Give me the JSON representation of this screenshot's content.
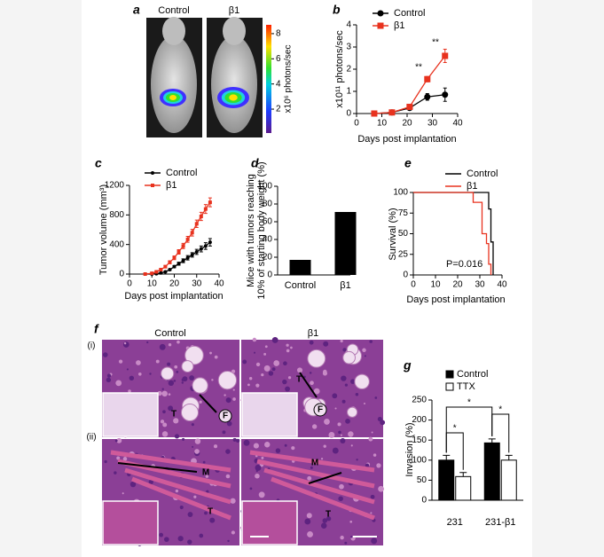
{
  "panel_a": {
    "label": "a",
    "columns": [
      "Control",
      "β1"
    ],
    "colorbar": {
      "label": "x10⁶ photons/sec",
      "lim": [
        0.1,
        8.7
      ],
      "ticks": [
        2,
        4,
        6,
        8
      ]
    }
  },
  "panel_f": {
    "label": "f",
    "columns": [
      "Control",
      "β1"
    ],
    "rows": [
      "(i)",
      "(ii)"
    ],
    "markers": [
      "T",
      "F",
      "T",
      "F",
      "M",
      "T",
      "M",
      "T"
    ]
  },
  "chart_data": [
    {
      "type": "line",
      "label": "b",
      "xlabel": "Days post implantation",
      "ylabel": "x10¹¹ photons/sec",
      "x": [
        7,
        14,
        21,
        28,
        35
      ],
      "xlim": [
        0,
        40
      ],
      "xticks": [
        0,
        10,
        20,
        30,
        40
      ],
      "ylim": [
        0,
        4
      ],
      "yticks": [
        0,
        1,
        2,
        3,
        4
      ],
      "series": [
        {
          "name": "Control",
          "color": "#000000",
          "marker": "circle",
          "values": [
            0,
            0.05,
            0.25,
            0.75,
            0.85
          ],
          "errors": [
            0.03,
            0.03,
            0.08,
            0.15,
            0.3
          ]
        },
        {
          "name": "β1",
          "color": "#e8321e",
          "marker": "square",
          "values": [
            0,
            0.05,
            0.3,
            1.55,
            2.6
          ],
          "errors": [
            0.03,
            0.03,
            0.08,
            0.12,
            0.3
          ]
        }
      ],
      "annotations": [
        "**",
        "**"
      ]
    },
    {
      "type": "line",
      "label": "c",
      "xlabel": "Days post implantation",
      "ylabel": "Tumor volume (mm³)",
      "x": [
        7,
        10,
        12,
        14,
        16,
        18,
        20,
        22,
        24,
        26,
        28,
        30,
        32,
        34,
        36
      ],
      "xlim": [
        0,
        40
      ],
      "xticks": [
        0,
        10,
        20,
        30,
        40
      ],
      "ylim": [
        0,
        1200
      ],
      "yticks": [
        0,
        400,
        800,
        1200
      ],
      "series": [
        {
          "name": "Control",
          "color": "#000000",
          "marker": "circle",
          "values": [
            0,
            0,
            5,
            15,
            30,
            60,
            100,
            140,
            180,
            220,
            260,
            300,
            340,
            380,
            430
          ],
          "errors": [
            0,
            0,
            3,
            5,
            8,
            10,
            15,
            20,
            25,
            30,
            30,
            35,
            40,
            45,
            50
          ]
        },
        {
          "name": "β1",
          "color": "#e8321e",
          "marker": "square",
          "values": [
            0,
            10,
            30,
            60,
            100,
            160,
            220,
            300,
            380,
            470,
            560,
            680,
            780,
            880,
            970
          ],
          "errors": [
            0,
            5,
            8,
            10,
            15,
            20,
            25,
            30,
            35,
            40,
            45,
            50,
            55,
            60,
            60
          ]
        }
      ]
    },
    {
      "type": "bar",
      "label": "d",
      "ylabel": [
        "Mice with tumors reaching",
        "10% of starting body weight (%)"
      ],
      "categories": [
        "Control",
        "β1"
      ],
      "values": [
        17,
        71
      ],
      "color": "#000000",
      "ylim": [
        0,
        100
      ],
      "yticks": [
        0,
        20,
        40,
        60,
        80,
        100
      ]
    },
    {
      "type": "survival",
      "label": "e",
      "xlabel": "Days post implantation",
      "ylabel": "Survival (%)",
      "xlim": [
        0,
        40
      ],
      "xticks": [
        0,
        10,
        20,
        30,
        40
      ],
      "ylim": [
        0,
        100
      ],
      "yticks": [
        0,
        25,
        50,
        75,
        100
      ],
      "series": [
        {
          "name": "Control",
          "color": "#000000",
          "x": [
            0,
            34,
            35,
            36
          ],
          "values": [
            100,
            80,
            40,
            0
          ]
        },
        {
          "name": "β1",
          "color": "#e8321e",
          "x": [
            0,
            27,
            31,
            33,
            34,
            35
          ],
          "values": [
            100,
            88,
            50,
            38,
            13,
            0
          ]
        }
      ],
      "annotations": [
        "P=0.016"
      ]
    },
    {
      "type": "groupedbar",
      "label": "g",
      "ylabel": "Invasion (%)",
      "categories": [
        "231",
        "231-β1"
      ],
      "ylim": [
        0,
        250
      ],
      "yticks": [
        0,
        50,
        100,
        150,
        200,
        250
      ],
      "series": [
        {
          "name": "Control",
          "color": "#000000",
          "values": [
            100,
            143
          ],
          "errors": [
            12,
            10
          ]
        },
        {
          "name": "TTX",
          "color": "#ffffff",
          "values": [
            59,
            100
          ],
          "errors": [
            10,
            12
          ]
        }
      ],
      "annotations": [
        "*",
        "*",
        "*"
      ]
    }
  ]
}
